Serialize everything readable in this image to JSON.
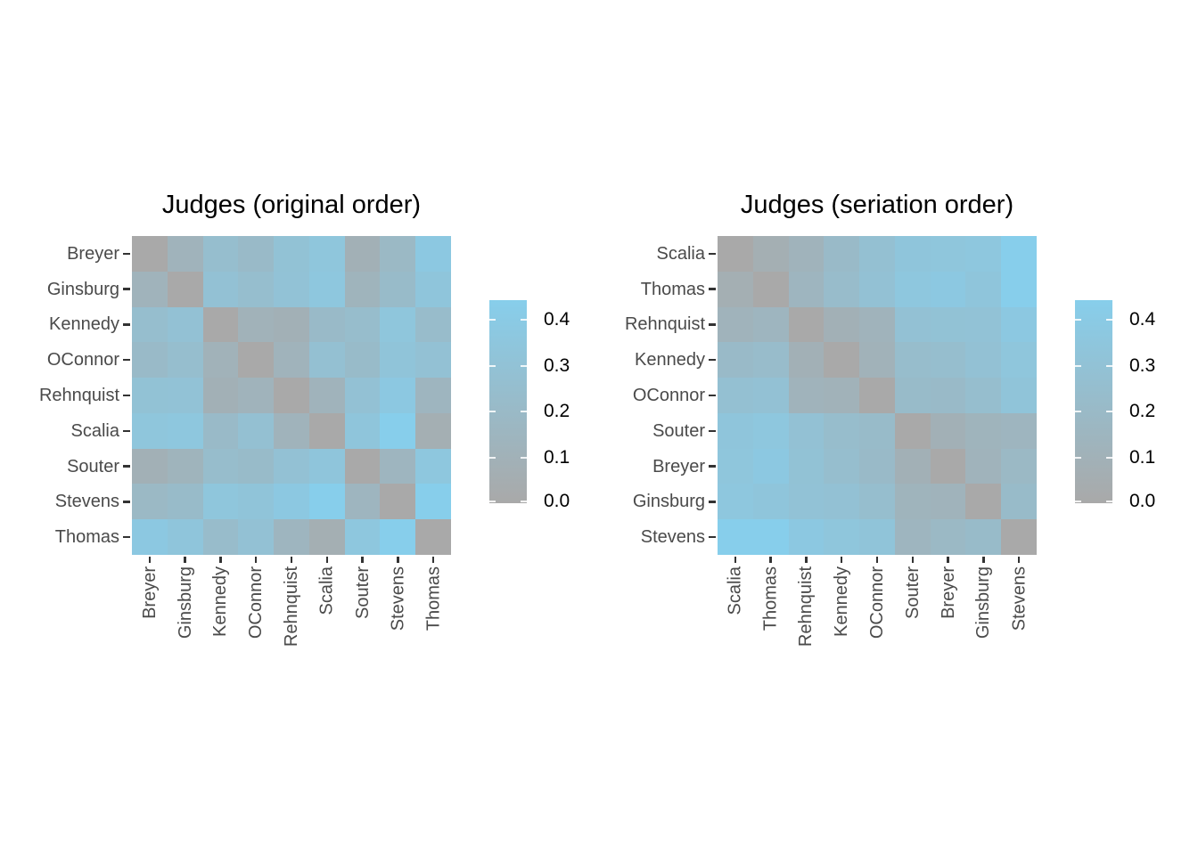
{
  "figure": {
    "background": "#ffffff"
  },
  "chart_data": {
    "type": "heatmap",
    "judges": [
      "Breyer",
      "Ginsburg",
      "Kennedy",
      "OConnor",
      "Rehnquist",
      "Scalia",
      "Souter",
      "Stevens",
      "Thomas"
    ],
    "matrix": [
      [
        0.0,
        0.12,
        0.25,
        0.21,
        0.3,
        0.35,
        0.09,
        0.19,
        0.38
      ],
      [
        0.12,
        0.0,
        0.29,
        0.25,
        0.31,
        0.36,
        0.13,
        0.22,
        0.34
      ],
      [
        0.25,
        0.29,
        0.0,
        0.11,
        0.09,
        0.21,
        0.24,
        0.35,
        0.23
      ],
      [
        0.21,
        0.25,
        0.11,
        0.0,
        0.12,
        0.28,
        0.22,
        0.33,
        0.29
      ],
      [
        0.3,
        0.31,
        0.09,
        0.12,
        0.0,
        0.12,
        0.29,
        0.38,
        0.15
      ],
      [
        0.35,
        0.36,
        0.21,
        0.28,
        0.12,
        0.0,
        0.34,
        0.45,
        0.07
      ],
      [
        0.09,
        0.13,
        0.24,
        0.22,
        0.29,
        0.34,
        0.0,
        0.15,
        0.36
      ],
      [
        0.19,
        0.22,
        0.35,
        0.33,
        0.38,
        0.45,
        0.15,
        0.0,
        0.45
      ],
      [
        0.38,
        0.34,
        0.23,
        0.29,
        0.15,
        0.07,
        0.36,
        0.45,
        0.0
      ]
    ],
    "panels": [
      {
        "title": "Judges (original order)",
        "order": [
          "Breyer",
          "Ginsburg",
          "Kennedy",
          "OConnor",
          "Rehnquist",
          "Scalia",
          "Souter",
          "Stevens",
          "Thomas"
        ]
      },
      {
        "title": "Judges (seriation order)",
        "order": [
          "Scalia",
          "Thomas",
          "Rehnquist",
          "Kennedy",
          "OConnor",
          "Souter",
          "Breyer",
          "Ginsburg",
          "Stevens"
        ]
      }
    ],
    "colorbar": {
      "tick_labels": [
        "0.4",
        "0.3",
        "0.2",
        "0.1",
        "0.0"
      ],
      "tick_values": [
        0.4,
        0.3,
        0.2,
        0.1,
        0.0
      ],
      "low_color": "#a9a9a9",
      "high_color": "#87ceeb",
      "vmin": 0.0,
      "vmax": 0.45
    },
    "layout": {
      "grid": false,
      "legend_position": "right",
      "x_tick_rotation": 90
    }
  }
}
